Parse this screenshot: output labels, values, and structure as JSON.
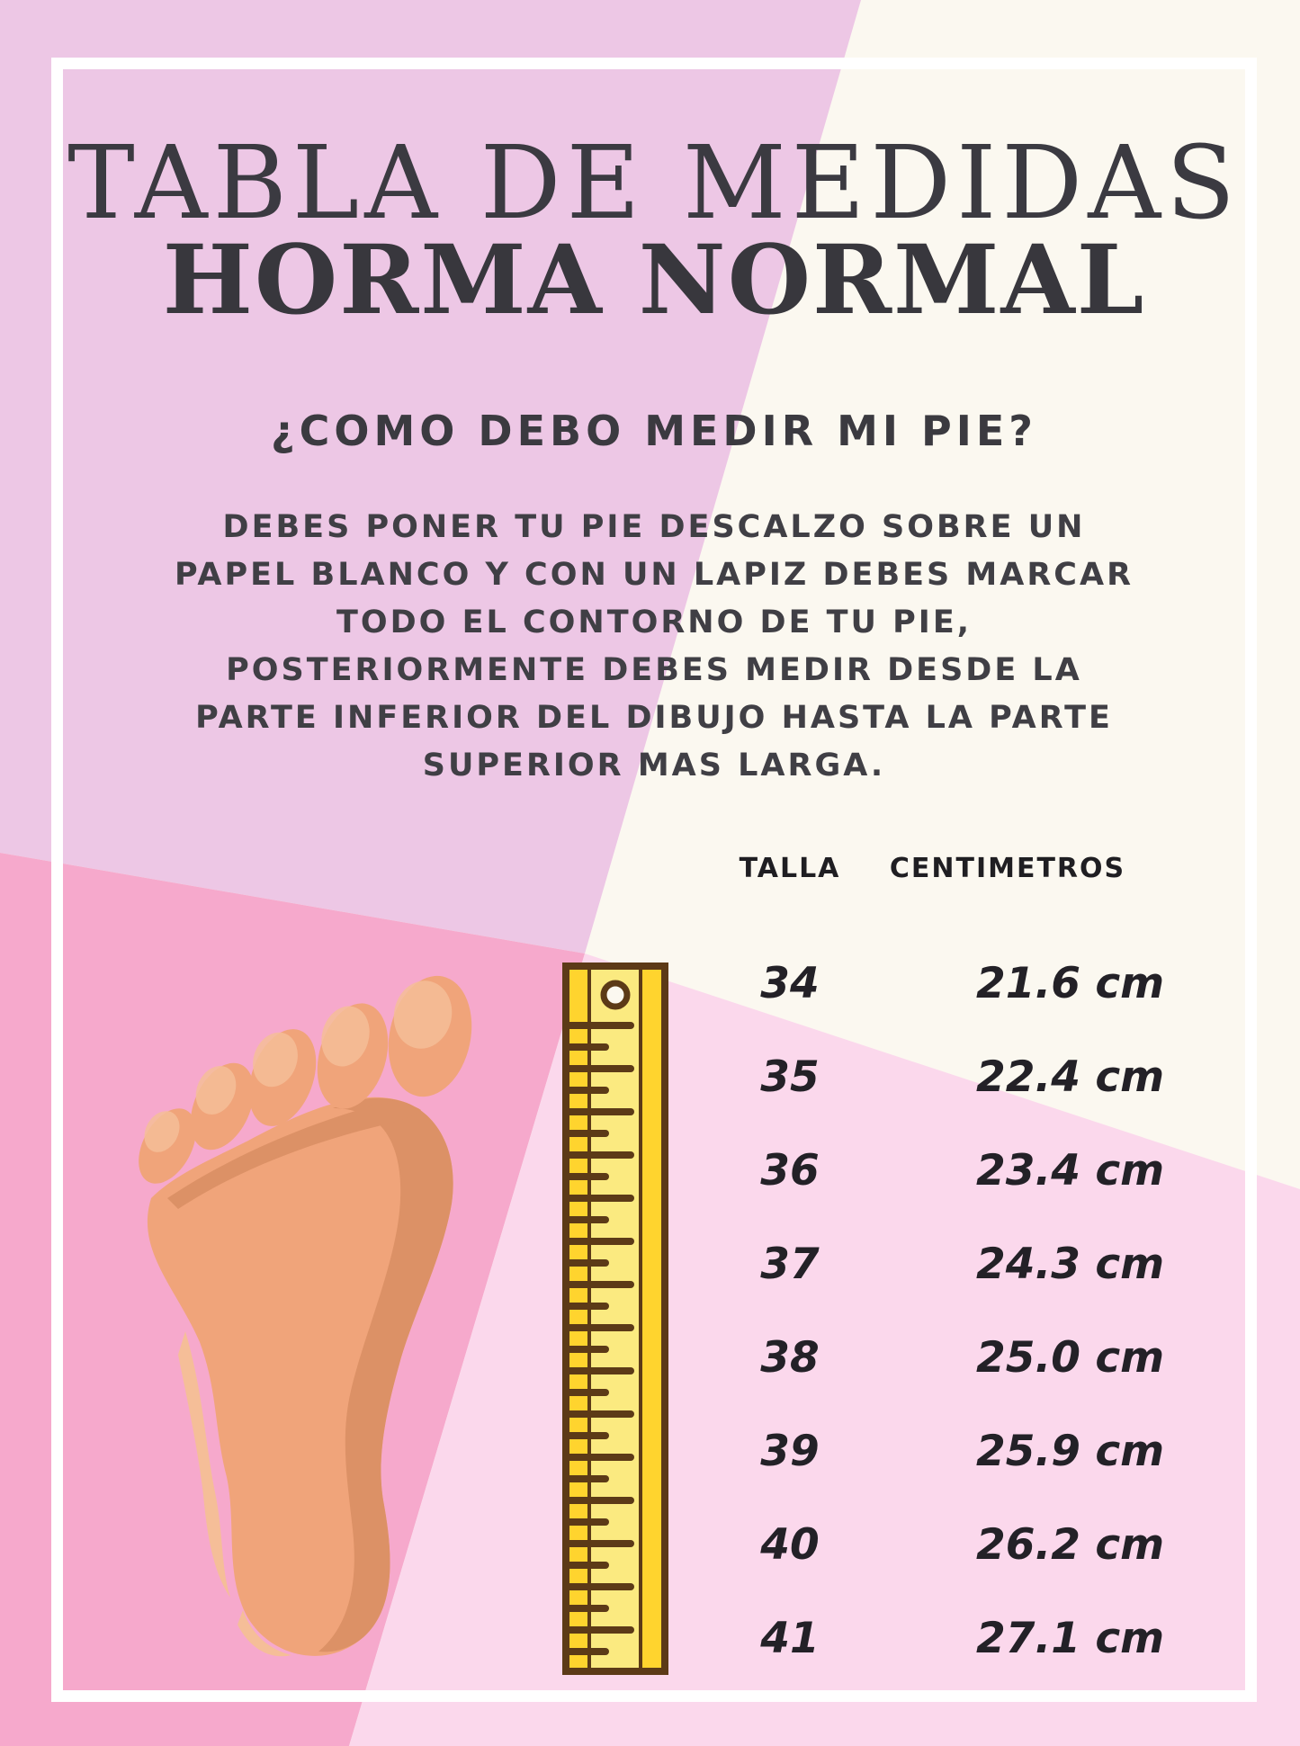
{
  "poster": {
    "title": "TABLA DE MEDIDAS",
    "subtitle": "HORMA NORMAL",
    "question": "¿COMO DEBO MEDIR MI PIE?",
    "instructions": [
      "DEBES PONER TU PIE DESCALZO SOBRE UN",
      "PAPEL BLANCO Y CON UN LAPIZ DEBES MARCAR",
      "TODO EL CONTORNO DE TU PIE,",
      "POSTERIORMENTE DEBES MEDIR DESDE LA",
      "PARTE INFERIOR DEL DIBUJO HASTA LA PARTE",
      "SUPERIOR MAS LARGA."
    ],
    "table": {
      "headers": {
        "size": "TALLA",
        "cm": "CENTIMETROS"
      },
      "rows": [
        {
          "talla": "34",
          "cm": "21.6 cm"
        },
        {
          "talla": "35",
          "cm": "22.4 cm"
        },
        {
          "talla": "36",
          "cm": "23.4 cm"
        },
        {
          "talla": "37",
          "cm": "24.3 cm"
        },
        {
          "talla": "38",
          "cm": "25.0 cm"
        },
        {
          "talla": "39",
          "cm": "25.9 cm"
        },
        {
          "talla": "40",
          "cm": "26.2 cm"
        },
        {
          "talla": "41",
          "cm": "27.1 cm"
        }
      ]
    },
    "illustrations": [
      "foot-illustration",
      "ruler-illustration"
    ],
    "colors": {
      "mauve": "#edc7e5",
      "pink": "#f6a9cc",
      "light_pink": "#fbd8ec",
      "cream": "#fbf8f0",
      "frame_white": "#ffffff",
      "text_dark": "#3b3a41",
      "foot_skin": "#f0a47a",
      "foot_shadow": "#dc9166",
      "foot_highlight": "#f5be98",
      "ruler_yellow": "#fbea80",
      "ruler_accent": "#ffd42e",
      "ruler_brown": "#5c3a17"
    }
  },
  "chart_data": {
    "type": "table",
    "title": "TABLA DE MEDIDAS — HORMA NORMAL",
    "columns": [
      "TALLA",
      "CENTIMETROS"
    ],
    "rows": [
      [
        "34",
        "21.6 cm"
      ],
      [
        "35",
        "22.4 cm"
      ],
      [
        "36",
        "23.4 cm"
      ],
      [
        "37",
        "24.3 cm"
      ],
      [
        "38",
        "25.0 cm"
      ],
      [
        "39",
        "25.9 cm"
      ],
      [
        "40",
        "26.2 cm"
      ],
      [
        "41",
        "27.1 cm"
      ]
    ]
  }
}
